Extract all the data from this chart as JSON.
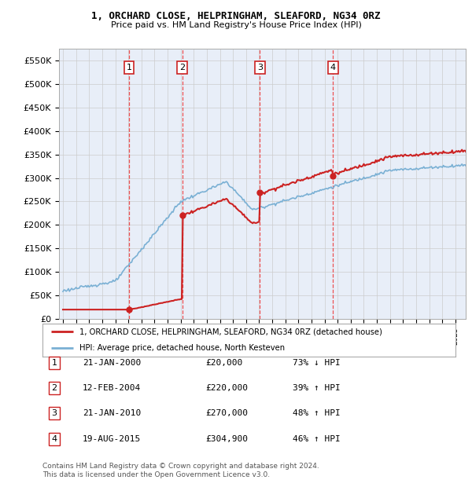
{
  "title1": "1, ORCHARD CLOSE, HELPRINGHAM, SLEAFORD, NG34 0RZ",
  "title2": "Price paid vs. HM Land Registry's House Price Index (HPI)",
  "ylim": [
    0,
    575000
  ],
  "xlim_start": 1994.7,
  "xlim_end": 2025.8,
  "yticks": [
    0,
    50000,
    100000,
    150000,
    200000,
    250000,
    300000,
    350000,
    400000,
    450000,
    500000,
    550000
  ],
  "ytick_labels": [
    "£0",
    "£50K",
    "£100K",
    "£150K",
    "£200K",
    "£250K",
    "£300K",
    "£350K",
    "£400K",
    "£450K",
    "£500K",
    "£550K"
  ],
  "sale_dates": [
    2000.055,
    2004.12,
    2010.055,
    2015.638
  ],
  "sale_prices": [
    20000,
    220000,
    270000,
    304900
  ],
  "sale_labels": [
    "1",
    "2",
    "3",
    "4"
  ],
  "vline_color": "#ee3333",
  "hpi_color": "#7ab0d4",
  "price_color": "#cc2222",
  "legend_entries": [
    "1, ORCHARD CLOSE, HELPRINGHAM, SLEAFORD, NG34 0RZ (detached house)",
    "HPI: Average price, detached house, North Kesteven"
  ],
  "table_data": [
    [
      "1",
      "21-JAN-2000",
      "£20,000",
      "73% ↓ HPI"
    ],
    [
      "2",
      "12-FEB-2004",
      "£220,000",
      "39% ↑ HPI"
    ],
    [
      "3",
      "21-JAN-2010",
      "£270,000",
      "48% ↑ HPI"
    ],
    [
      "4",
      "19-AUG-2015",
      "£304,900",
      "46% ↑ HPI"
    ]
  ],
  "footnote": "Contains HM Land Registry data © Crown copyright and database right 2024.\nThis data is licensed under the Open Government Licence v3.0.",
  "background_color": "#ffffff",
  "grid_color": "#cccccc",
  "chart_bg": "#e8eef8",
  "label_box_color": "#cc2222"
}
